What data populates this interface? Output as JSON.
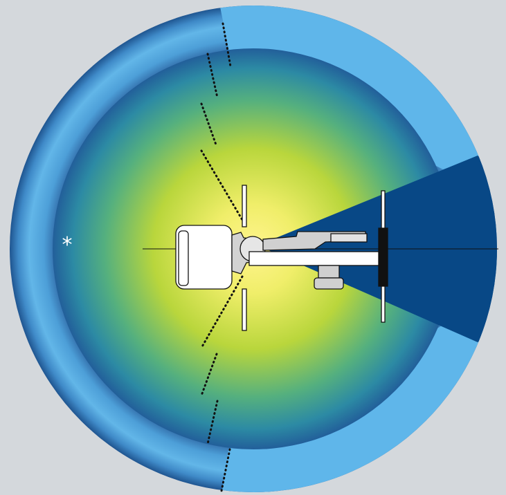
{
  "diagram": {
    "markers": {
      "asterisk": "*"
    },
    "colors": {
      "background": "#d4d8dc",
      "outer_ring": "#5ab4e6",
      "outer_ring_dark": "#1f5f9e",
      "inner_center": "#fff689",
      "inner_mid": "#b9d43e",
      "inner_edge": "#2a6ea8",
      "blind_zone": "#084886",
      "machine_fill": "#ffffff",
      "machine_gray": "#c4c4c4",
      "implement": "#111111"
    }
  }
}
